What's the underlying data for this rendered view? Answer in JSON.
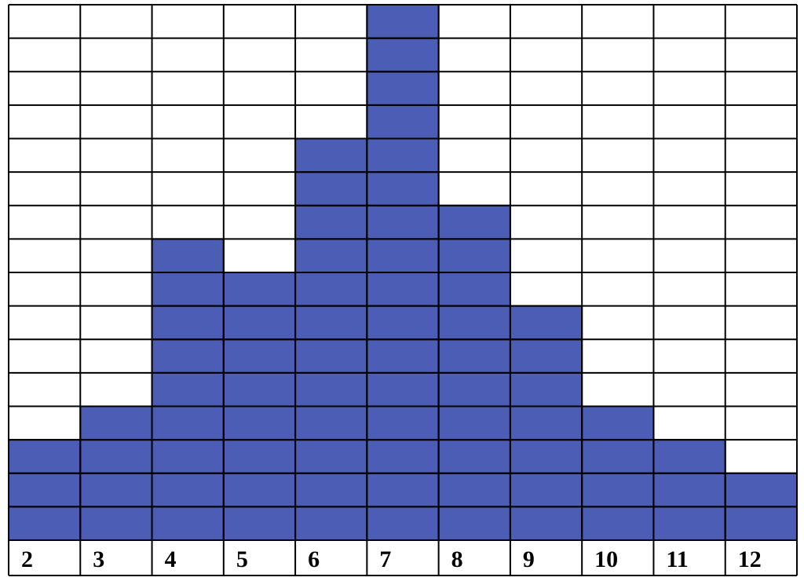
{
  "chart_data": {
    "type": "bar",
    "categories": [
      "2",
      "3",
      "4",
      "5",
      "6",
      "7",
      "8",
      "9",
      "10",
      "11",
      "12"
    ],
    "values": [
      3,
      4,
      9,
      8,
      12,
      16,
      10,
      7,
      4,
      3,
      2
    ],
    "ylim": [
      0,
      16
    ],
    "grid": true,
    "title": "",
    "xlabel": "",
    "ylabel": "",
    "colors": {
      "bar": "#4B5DB5",
      "grid": "#000000",
      "background": "#ffffff"
    }
  }
}
